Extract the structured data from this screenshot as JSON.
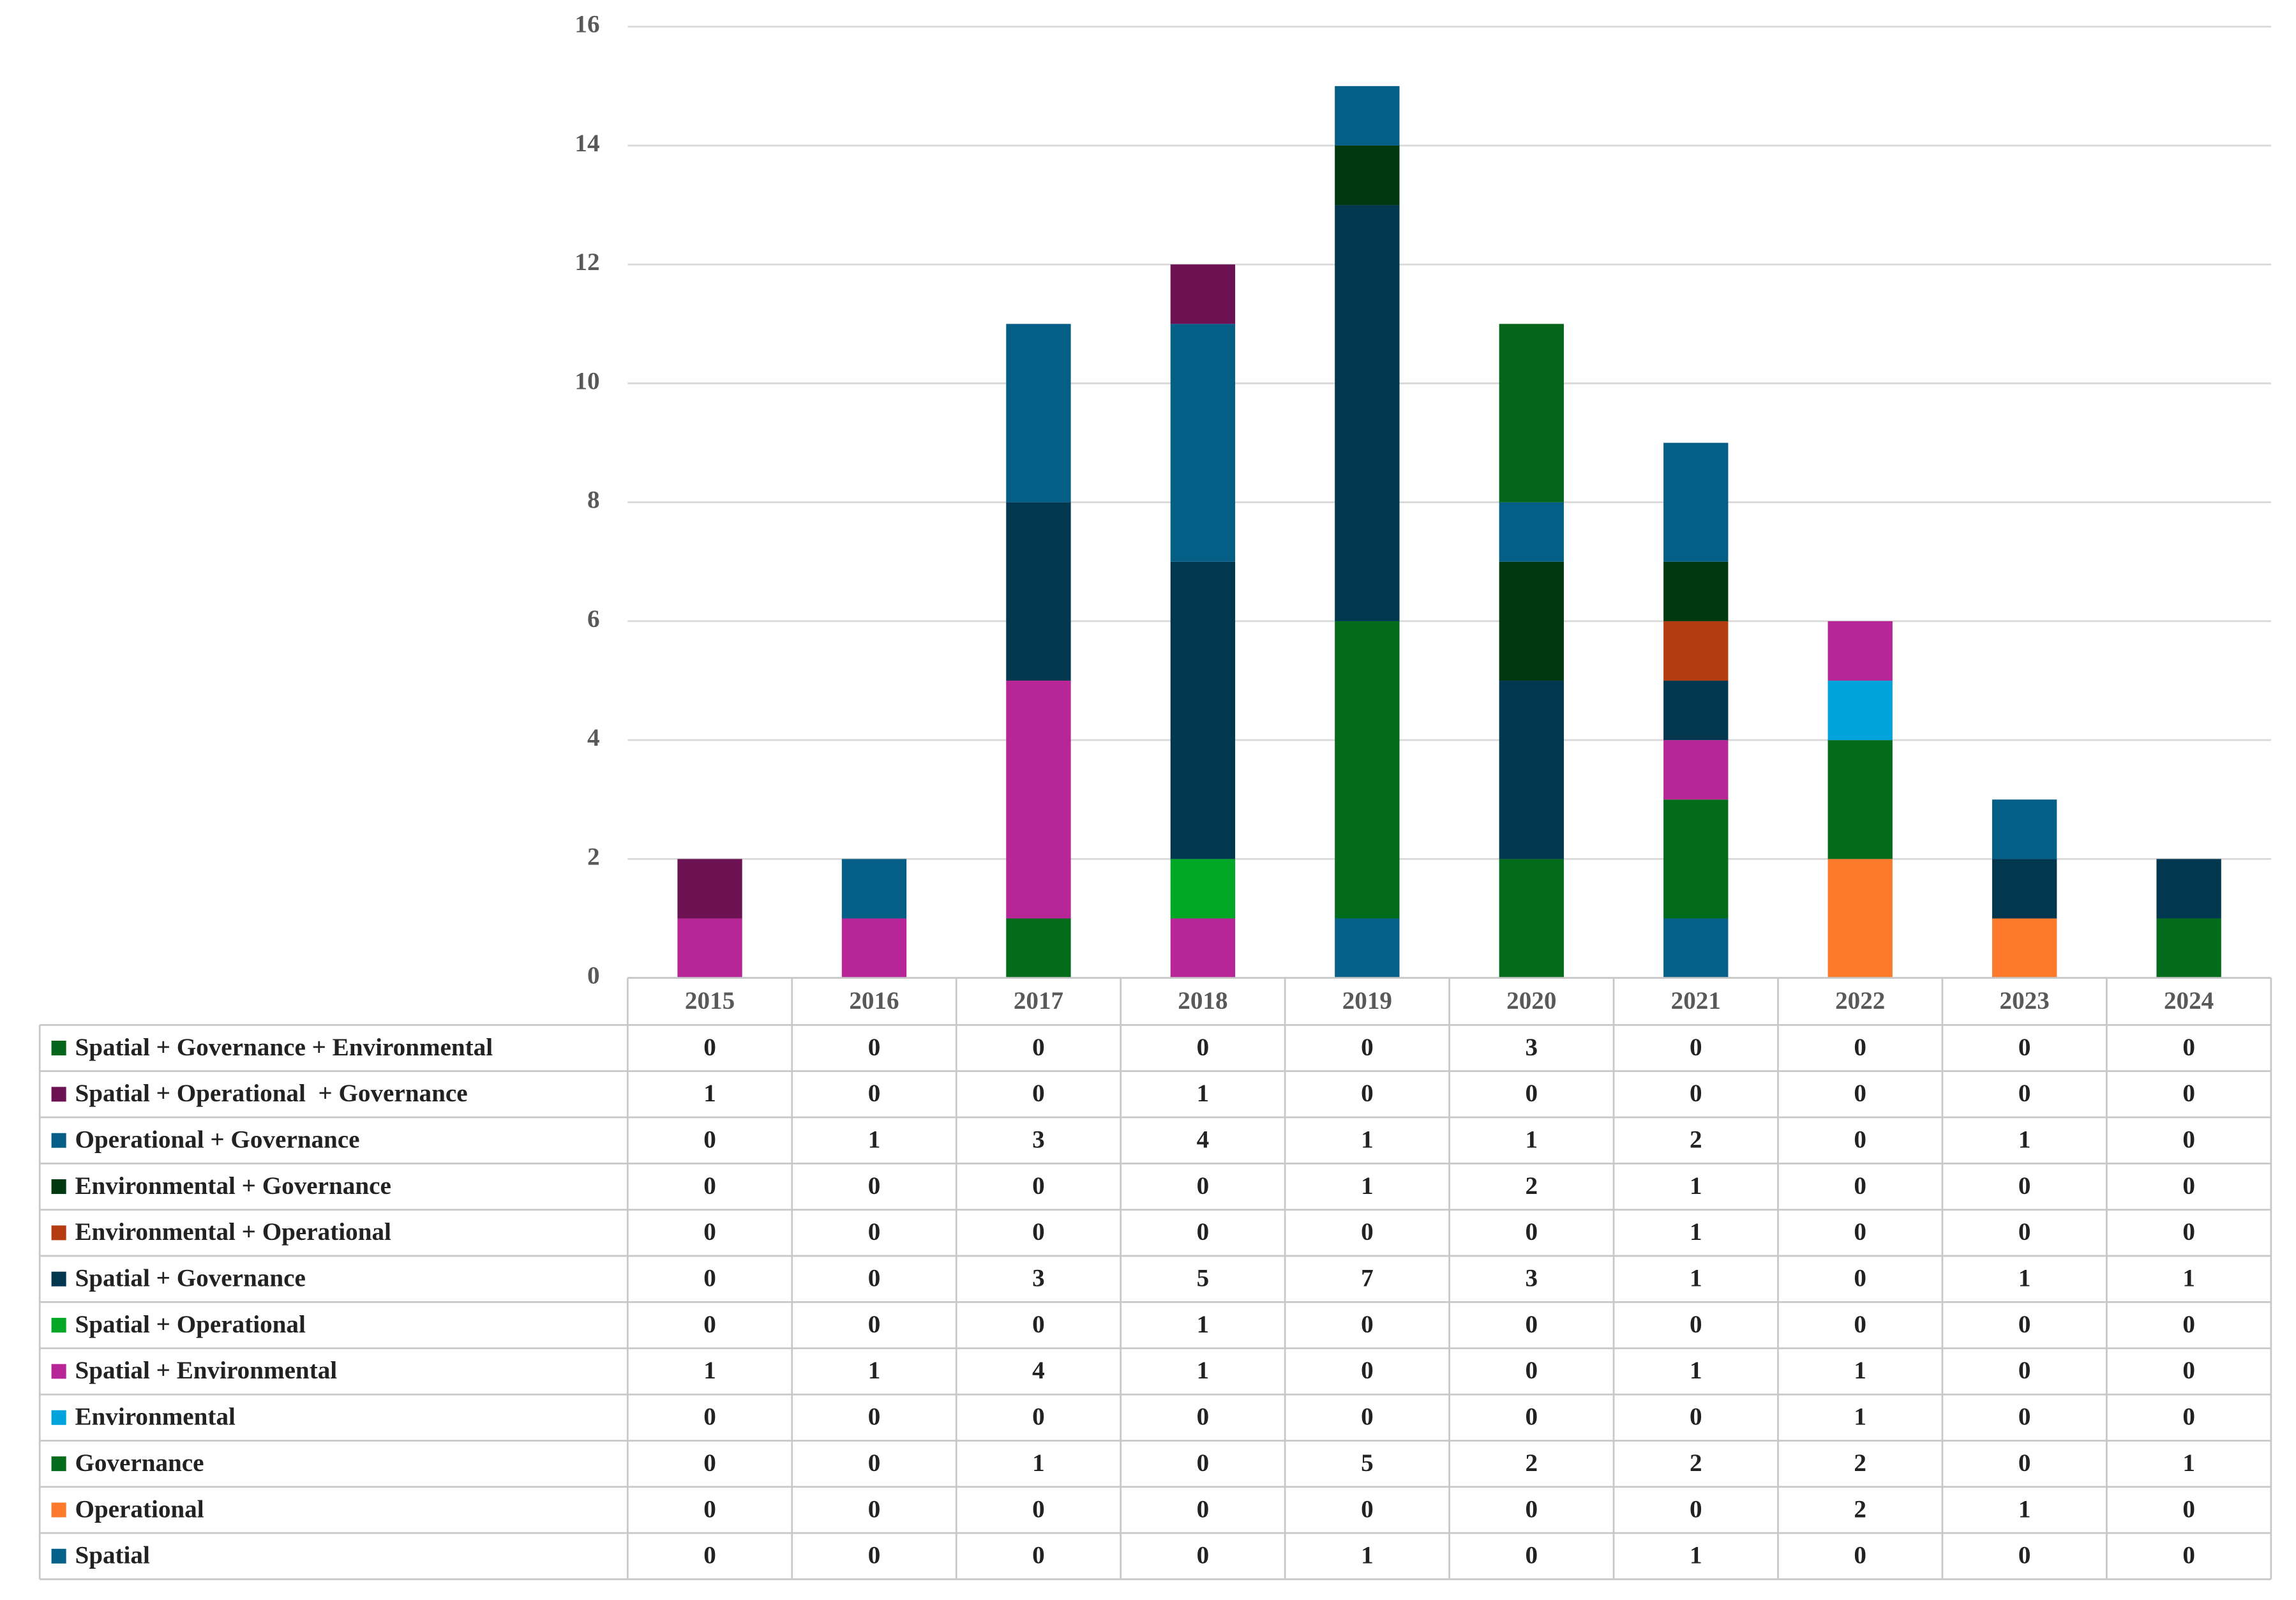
{
  "chart_data": {
    "type": "bar",
    "stacked": true,
    "grid": true,
    "categories": [
      "2015",
      "2016",
      "2017",
      "2018",
      "2019",
      "2020",
      "2021",
      "2022",
      "2023",
      "2024"
    ],
    "ylim": [
      0,
      16
    ],
    "yticks": [
      0,
      2,
      4,
      6,
      8,
      10,
      12,
      14,
      16
    ],
    "series": [
      {
        "name": "Spatial",
        "color": "#05618a",
        "values": [
          0,
          0,
          0,
          0,
          1,
          0,
          1,
          0,
          0,
          0
        ]
      },
      {
        "name": "Operational",
        "color": "#fd7a2d",
        "values": [
          0,
          0,
          0,
          0,
          0,
          0,
          0,
          2,
          1,
          0
        ]
      },
      {
        "name": "Governance",
        "color": "#036b1c",
        "values": [
          0,
          0,
          1,
          0,
          5,
          2,
          2,
          2,
          0,
          1
        ]
      },
      {
        "name": "Environmental",
        "color": "#00a3db",
        "values": [
          0,
          0,
          0,
          0,
          0,
          0,
          0,
          1,
          0,
          0
        ]
      },
      {
        "name": "Spatial + Environmental",
        "color": "#b82596",
        "values": [
          1,
          1,
          4,
          1,
          0,
          0,
          1,
          1,
          0,
          0
        ]
      },
      {
        "name": "Spatial + Operational",
        "color": "#00a826",
        "values": [
          0,
          0,
          0,
          1,
          0,
          0,
          0,
          0,
          0,
          0
        ]
      },
      {
        "name": "Spatial + Governance",
        "color": "#01374f",
        "values": [
          0,
          0,
          3,
          5,
          7,
          3,
          1,
          0,
          1,
          1
        ]
      },
      {
        "name": "Environmental + Operational",
        "color": "#b43c10",
        "values": [
          0,
          0,
          0,
          0,
          0,
          0,
          1,
          0,
          0,
          0
        ]
      },
      {
        "name": "Environmental + Governance",
        "color": "#003810",
        "values": [
          0,
          0,
          0,
          0,
          1,
          2,
          1,
          0,
          0,
          0
        ]
      },
      {
        "name": "Operational + Governance",
        "color": "#055e86",
        "values": [
          0,
          1,
          3,
          4,
          1,
          1,
          2,
          0,
          1,
          0
        ]
      },
      {
        "name": "Spatial + Operational  + Governance",
        "color": "#6c1253",
        "values": [
          1,
          0,
          0,
          1,
          0,
          0,
          0,
          0,
          0,
          0
        ]
      },
      {
        "name": "Spatial + Governance + Environmental",
        "color": "#05661b",
        "values": [
          0,
          0,
          0,
          0,
          0,
          3,
          0,
          0,
          0,
          0
        ]
      }
    ]
  }
}
